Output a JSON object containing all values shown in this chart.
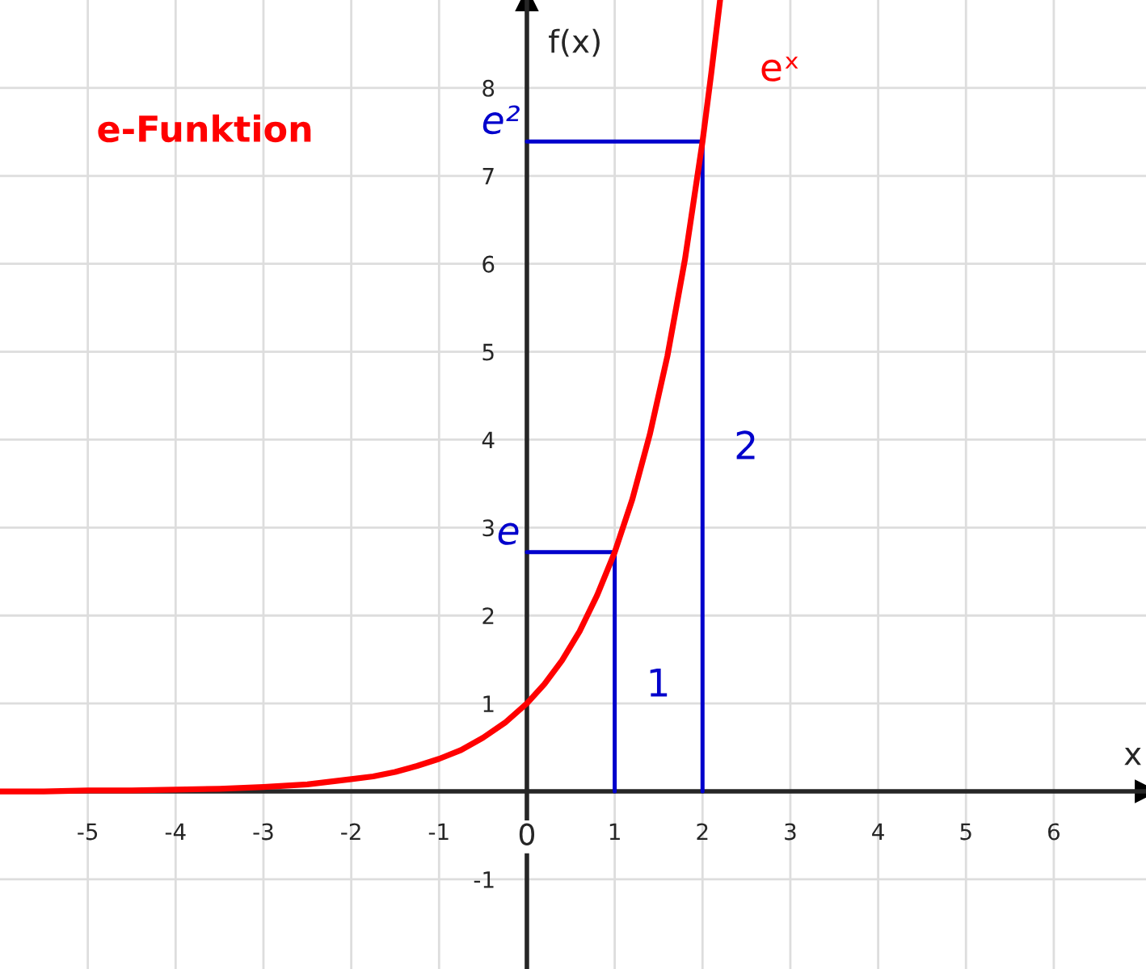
{
  "chart_data": {
    "type": "line",
    "title": "e-Funktion",
    "xlabel": "x",
    "ylabel": "f(x)",
    "xlim": [
      -6,
      7.05
    ],
    "ylim": [
      -2.02,
      9.0
    ],
    "xticks": [
      -5,
      -4,
      -3,
      -2,
      -1,
      0,
      1,
      2,
      3,
      4,
      5,
      6
    ],
    "yticks": [
      -1,
      1,
      2,
      3,
      4,
      5,
      6,
      7,
      8
    ],
    "grid": true,
    "legend": false,
    "marker": "none",
    "line_style": "solid",
    "series": [
      {
        "name": "eˣ",
        "color": "#ff0000",
        "x": [
          -6,
          -5.5,
          -5,
          -4.5,
          -4,
          -3.5,
          -3,
          -2.5,
          -2,
          -1.75,
          -1.5,
          -1.25,
          -1,
          -0.75,
          -0.5,
          -0.25,
          0,
          0.2,
          0.4,
          0.6,
          0.8,
          1,
          1.2,
          1.4,
          1.6,
          1.8,
          2,
          2.1,
          2.2
        ],
        "values": [
          0.0,
          0.0,
          0.01,
          0.01,
          0.02,
          0.03,
          0.05,
          0.08,
          0.14,
          0.17,
          0.22,
          0.29,
          0.37,
          0.47,
          0.61,
          0.78,
          1.0,
          1.22,
          1.49,
          1.82,
          2.23,
          2.72,
          3.32,
          4.06,
          4.95,
          6.05,
          7.39,
          8.17,
          9.0
        ]
      },
      {
        "color": "#0000cc",
        "x": [
          1,
          1,
          0
        ],
        "values": [
          0,
          2.72,
          2.72
        ]
      },
      {
        "color": "#0000cc",
        "x": [
          2,
          2,
          0
        ],
        "values": [
          0,
          7.39,
          7.39
        ]
      }
    ],
    "annotations": [
      {
        "text": "e",
        "x": 0,
        "y": 2.72
      },
      {
        "text": "e²",
        "x": 0,
        "y": 7.39
      },
      {
        "text": "1",
        "x": 1,
        "y": 1.2
      },
      {
        "text": "2",
        "x": 2,
        "y": 3.9
      }
    ]
  }
}
